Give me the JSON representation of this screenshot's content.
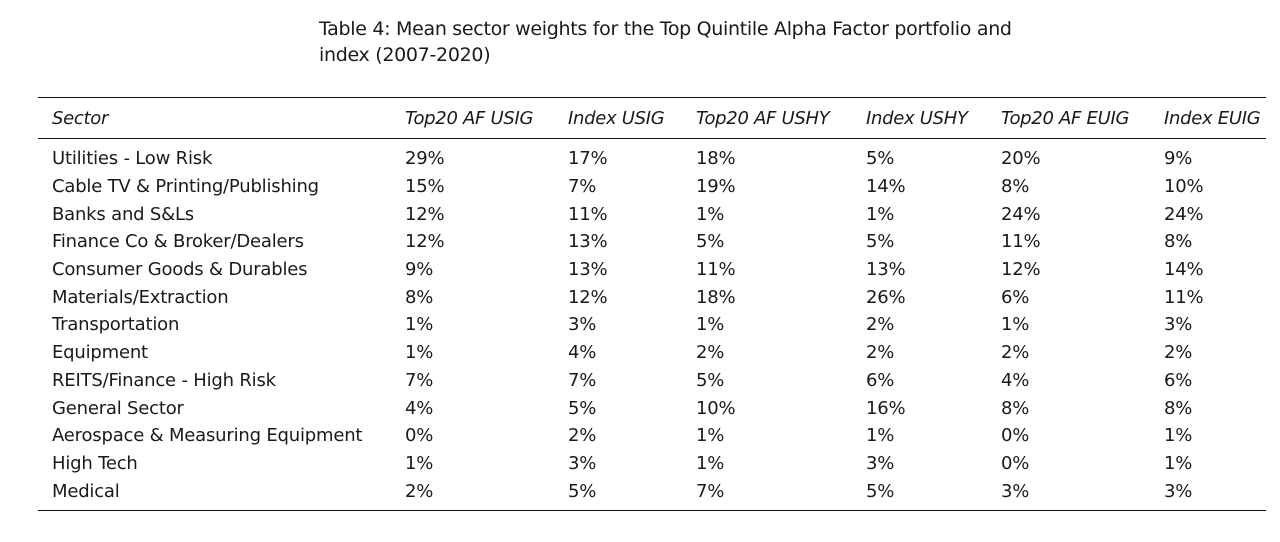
{
  "caption": {
    "line1": "Table 4: Mean sector weights for the Top Quintile Alpha Factor portfolio and",
    "line2": "index (2007-2020)"
  },
  "table": {
    "headers": [
      "Sector",
      "Top20 AF USIG",
      "Index USIG",
      "Top20 AF USHY",
      "Index USHY",
      "Top20 AF EUIG",
      "Index EUIG"
    ],
    "rows": [
      [
        "Utilities - Low Risk",
        "29%",
        "17%",
        "18%",
        "5%",
        "20%",
        "9%"
      ],
      [
        "Cable TV & Printing/Publishing",
        "15%",
        "7%",
        "19%",
        "14%",
        "8%",
        "10%"
      ],
      [
        "Banks and S&Ls",
        "12%",
        "11%",
        "1%",
        "1%",
        "24%",
        "24%"
      ],
      [
        "Finance Co & Broker/Dealers",
        "12%",
        "13%",
        "5%",
        "5%",
        "11%",
        "8%"
      ],
      [
        "Consumer Goods & Durables",
        "9%",
        "13%",
        "11%",
        "13%",
        "12%",
        "14%"
      ],
      [
        "Materials/Extraction",
        "8%",
        "12%",
        "18%",
        "26%",
        "6%",
        "11%"
      ],
      [
        "Transportation",
        "1%",
        "3%",
        "1%",
        "2%",
        "1%",
        "3%"
      ],
      [
        "Equipment",
        "1%",
        "4%",
        "2%",
        "2%",
        "2%",
        "2%"
      ],
      [
        "REITS/Finance - High Risk",
        "7%",
        "7%",
        "5%",
        "6%",
        "4%",
        "6%"
      ],
      [
        "General Sector",
        "4%",
        "5%",
        "10%",
        "16%",
        "8%",
        "8%"
      ],
      [
        "Aerospace & Measuring Equipment",
        "0%",
        "2%",
        "1%",
        "1%",
        "0%",
        "1%"
      ],
      [
        "High Tech",
        "1%",
        "3%",
        "1%",
        "3%",
        "0%",
        "1%"
      ],
      [
        "Medical",
        "2%",
        "5%",
        "7%",
        "5%",
        "3%",
        "3%"
      ]
    ]
  }
}
